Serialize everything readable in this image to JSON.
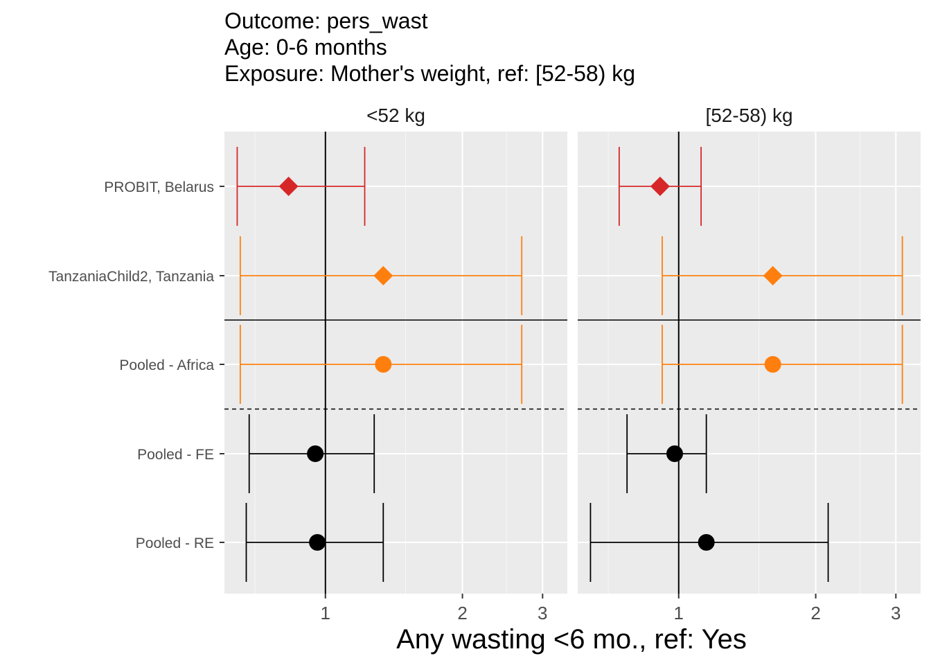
{
  "chart_data": {
    "type": "forest",
    "title_lines": [
      "Outcome: pers_wast",
      "Age: 0-6 months",
      "Exposure: Mother's weight, ref: [52-58) kg"
    ],
    "xlabel": "Any wasting  <6 mo., ref: Yes",
    "ylabel": "",
    "x_scale": "log",
    "xlim": [
      0.6,
      3.4
    ],
    "x_ticks": [
      {
        "value": 1,
        "label": "1"
      },
      {
        "value": 2,
        "label": "2"
      },
      {
        "value": 3,
        "label": "3"
      }
    ],
    "x_minor_ticks": [
      0.7,
      1.5,
      2.5
    ],
    "grid": true,
    "legend": "none",
    "rows": [
      "PROBIT, Belarus",
      "TanzaniaChild2, Tanzania",
      "Pooled - Africa",
      "Pooled - FE",
      "Pooled - RE"
    ],
    "separators": [
      {
        "after_row": 1,
        "style": "solid"
      },
      {
        "after_row": 2,
        "style": "dashed"
      }
    ],
    "panels": [
      {
        "label": "<52 kg",
        "points": [
          {
            "row": 0,
            "est": 0.83,
            "lo": 0.64,
            "hi": 1.22,
            "shape": "diamond",
            "color": "#d62728"
          },
          {
            "row": 1,
            "est": 1.34,
            "lo": 0.65,
            "hi": 2.7,
            "shape": "diamond",
            "color": "#ff7f0e"
          },
          {
            "row": 2,
            "est": 1.34,
            "lo": 0.65,
            "hi": 2.7,
            "shape": "circle",
            "color": "#ff7f0e"
          },
          {
            "row": 3,
            "est": 0.95,
            "lo": 0.68,
            "hi": 1.28,
            "shape": "circle",
            "color": "#000000"
          },
          {
            "row": 4,
            "est": 0.96,
            "lo": 0.67,
            "hi": 1.34,
            "shape": "circle",
            "color": "#000000"
          }
        ]
      },
      {
        "label": "[52-58) kg",
        "points": [
          {
            "row": 0,
            "est": 0.91,
            "lo": 0.74,
            "hi": 1.12,
            "shape": "diamond",
            "color": "#d62728"
          },
          {
            "row": 1,
            "est": 1.61,
            "lo": 0.92,
            "hi": 3.1,
            "shape": "diamond",
            "color": "#ff7f0e"
          },
          {
            "row": 2,
            "est": 1.61,
            "lo": 0.92,
            "hi": 3.1,
            "shape": "circle",
            "color": "#ff7f0e"
          },
          {
            "row": 3,
            "est": 0.98,
            "lo": 0.77,
            "hi": 1.15,
            "shape": "circle",
            "color": "#000000"
          },
          {
            "row": 4,
            "est": 1.15,
            "lo": 0.64,
            "hi": 2.13,
            "shape": "circle",
            "color": "#000000"
          }
        ]
      }
    ]
  }
}
